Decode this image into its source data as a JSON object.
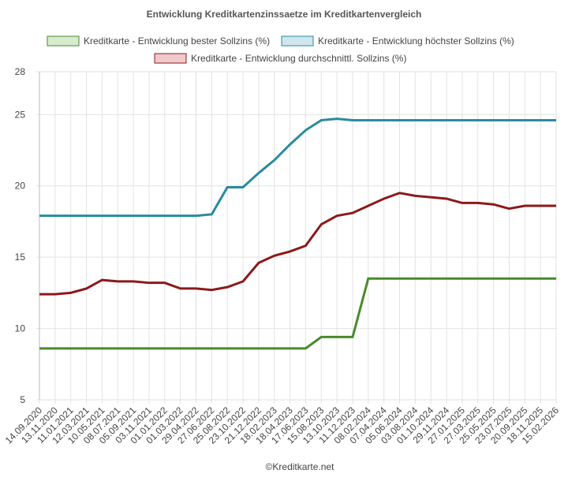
{
  "chart_data": {
    "type": "line",
    "title": "Entwicklung Kreditkartenzinssaetze im Kreditkartenvergleich",
    "footer": "©Kreditkarte.net",
    "categories": [
      "14.09.2020",
      "13.11.2020",
      "11.01.2021",
      "12.03.2021",
      "10.05.2021",
      "08.07.2021",
      "05.09.2021",
      "03.11.2021",
      "01.01.2022",
      "01.03.2022",
      "29.04.2022",
      "27.06.2022",
      "25.08.2022",
      "23.10.2022",
      "21.12.2022",
      "18.02.2023",
      "18.04.2023",
      "17.06.2023",
      "15.08.2023",
      "13.10.2023",
      "11.12.2023",
      "08.02.2024",
      "07.04.2024",
      "05.06.2024",
      "03.08.2024",
      "01.10.2024",
      "29.11.2024",
      "27.01.2025",
      "27.03.2025",
      "25.05.2025",
      "23.07.2025",
      "20.09.2025",
      "18.11.2025",
      "15.02.2026"
    ],
    "series": [
      {
        "name": "Kreditkarte - Entwicklung bester Sollzins  (%)",
        "color": "#4a8a2a",
        "fill": "#d6ebcf",
        "values": [
          8.6,
          8.6,
          8.6,
          8.6,
          8.6,
          8.6,
          8.6,
          8.6,
          8.6,
          8.6,
          8.6,
          8.6,
          8.6,
          8.6,
          8.6,
          8.6,
          8.6,
          8.6,
          9.4,
          9.4,
          9.4,
          13.5,
          13.5,
          13.5,
          13.5,
          13.5,
          13.5,
          13.5,
          13.5,
          13.5,
          13.5,
          13.5,
          13.5,
          13.5
        ]
      },
      {
        "name": "Kreditkarte - Entwicklung höchster Sollzins (%)",
        "color": "#2a8aa0",
        "fill": "#cfe6ec",
        "values": [
          17.9,
          17.9,
          17.9,
          17.9,
          17.9,
          17.9,
          17.9,
          17.9,
          17.9,
          17.9,
          17.9,
          18.0,
          19.9,
          19.9,
          20.9,
          21.8,
          22.9,
          23.9,
          24.6,
          24.7,
          24.6,
          24.6,
          24.6,
          24.6,
          24.6,
          24.6,
          24.6,
          24.6,
          24.6,
          24.6,
          24.6,
          24.6,
          24.6,
          24.6
        ]
      },
      {
        "name": "Kreditkarte - Entwicklung durchschnittl. Sollzins (%)",
        "color": "#8b1a1a",
        "fill": "#efc8cc",
        "values": [
          12.4,
          12.4,
          12.5,
          12.8,
          13.4,
          13.3,
          13.3,
          13.2,
          13.2,
          12.8,
          12.8,
          12.7,
          12.9,
          13.3,
          14.6,
          15.1,
          15.4,
          15.8,
          17.3,
          17.9,
          18.1,
          18.6,
          19.1,
          19.5,
          19.3,
          19.2,
          19.1,
          18.8,
          18.8,
          18.7,
          18.4,
          18.6,
          18.6,
          18.6
        ]
      }
    ],
    "ylim": [
      5,
      28
    ],
    "yticks": [
      5,
      10,
      15,
      20,
      25,
      28
    ],
    "grid": true
  }
}
